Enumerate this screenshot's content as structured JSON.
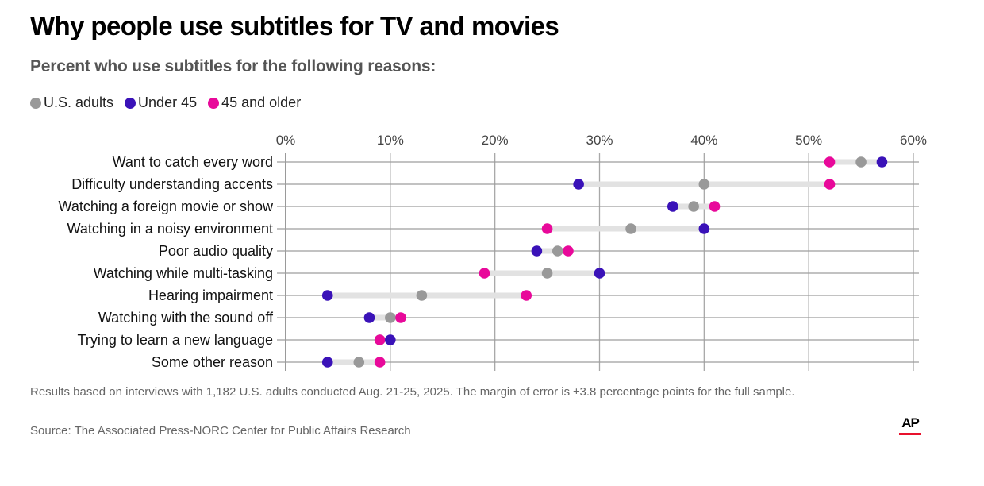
{
  "title": "Why people use subtitles for TV and movies",
  "subtitle": "Percent who use subtitles for the following reasons:",
  "legend": [
    {
      "label": "U.S. adults",
      "color": "#999999"
    },
    {
      "label": "Under 45",
      "color": "#3a12b8"
    },
    {
      "label": "45 and older",
      "color": "#e8099a"
    }
  ],
  "note": "Results based on interviews with 1,182 U.S. adults conducted Aug. 21-25, 2025. The margin of error is ±3.8 percentage points for the full sample.",
  "source": "Source: The Associated Press-NORC Center for Public Affairs Research",
  "logo": "AP",
  "chart_data": {
    "type": "scatter",
    "subtype": "dot-plot",
    "title": "Why people use subtitles for TV and movies",
    "subtitle": "Percent who use subtitles for the following reasons:",
    "xlabel": "",
    "ylabel": "",
    "xlim": [
      0,
      60
    ],
    "x_ticks": [
      0,
      10,
      20,
      30,
      40,
      50,
      60
    ],
    "x_tick_labels": [
      "0%",
      "10%",
      "20%",
      "30%",
      "40%",
      "50%",
      "60%"
    ],
    "grid": true,
    "legend_position": "top-left",
    "categories": [
      "Want to catch every word",
      "Difficulty understanding accents",
      "Watching a foreign movie or show",
      "Watching in a noisy environment",
      "Poor audio quality",
      "Watching while multi-tasking",
      "Hearing impairment",
      "Watching with the sound off",
      "Trying to learn a new language",
      "Some other reason"
    ],
    "series": [
      {
        "name": "U.S. adults",
        "color": "#999999",
        "values": [
          55,
          40,
          39,
          33,
          26,
          25,
          13,
          10,
          9,
          7
        ]
      },
      {
        "name": "45 and older",
        "color": "#e8099a",
        "values": [
          52,
          52,
          41,
          25,
          27,
          19,
          23,
          11,
          9,
          9
        ]
      },
      {
        "name": "Under 45",
        "color": "#3a12b8",
        "values": [
          57,
          28,
          37,
          40,
          24,
          30,
          4,
          8,
          10,
          4
        ]
      }
    ]
  }
}
